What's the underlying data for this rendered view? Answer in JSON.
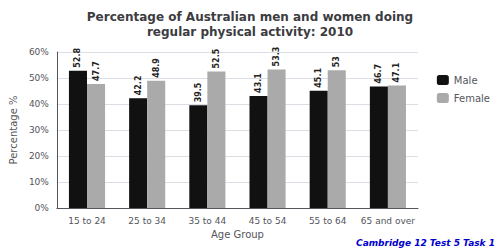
{
  "chart_data": {
    "type": "bar",
    "title": "Percentage of Australian men and women doing\nregular physical activity: 2010",
    "xlabel": "Age Group",
    "ylabel": "Percentage %",
    "categories": [
      "15 to 24",
      "25 to 34",
      "35 to 44",
      "45 to 54",
      "55 to 64",
      "65 and over"
    ],
    "series": [
      {
        "name": "Male",
        "color": "#111111",
        "values": [
          52.8,
          42.2,
          39.5,
          43.1,
          45.1,
          46.7
        ]
      },
      {
        "name": "Female",
        "color": "#aaaaaa",
        "values": [
          47.7,
          48.9,
          52.5,
          53.3,
          53.0,
          47.1
        ]
      }
    ],
    "ylim": [
      0,
      60
    ],
    "yticks": [
      {
        "value": 0,
        "label": "0%"
      },
      {
        "value": 10,
        "label": "10%"
      },
      {
        "value": 20,
        "label": "20%"
      },
      {
        "value": 30,
        "label": "30%"
      },
      {
        "value": 40,
        "label": "40%"
      },
      {
        "value": 50,
        "label": "50%"
      },
      {
        "value": 60,
        "label": "60%"
      }
    ],
    "grid": true,
    "legend": "right",
    "data_labels": true,
    "annotations": [
      {
        "text": "Cambridge 12 Test 5 Task 1",
        "color": "#0000cc"
      }
    ]
  }
}
